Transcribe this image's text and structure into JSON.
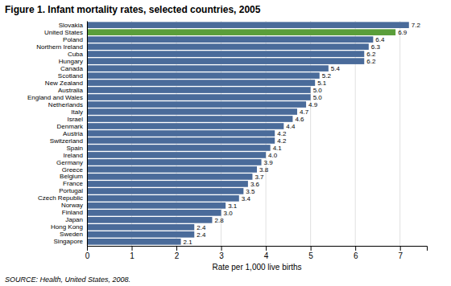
{
  "chart_data": {
    "type": "bar",
    "orientation": "horizontal",
    "title": "Figure 1. Infant mortality rates, selected countries, 2005",
    "x_label": "Rate per 1,000 live births",
    "annotations": [
      "SOURCE: Health, United States, 2008."
    ],
    "categories": [
      "Slovakia",
      "United States",
      "Poland",
      "Northern Ireland",
      "Cuba",
      "Hungary",
      "Canada",
      "Scotland",
      "New Zealand",
      "Australia",
      "England and Wales",
      "Netherlands",
      "Italy",
      "Israel",
      "Denmark",
      "Austria",
      "Switzerland",
      "Spain",
      "Ireland",
      "Germany",
      "Greece",
      "Belgium",
      "France",
      "Portugal",
      "Czech Republic",
      "Norway",
      "Finland",
      "Japan",
      "Hong Kong",
      "Sweden",
      "Singapore"
    ],
    "values": [
      7.2,
      6.9,
      6.4,
      6.3,
      6.2,
      6.2,
      5.4,
      5.2,
      5.1,
      5.0,
      5.0,
      4.9,
      4.7,
      4.6,
      4.4,
      4.2,
      4.2,
      4.1,
      4.0,
      3.9,
      3.8,
      3.7,
      3.6,
      3.5,
      3.4,
      3.1,
      3.0,
      2.8,
      2.4,
      2.4,
      2.1
    ],
    "value_labels": [
      "7.2",
      "6.9",
      "6.4",
      "6.3",
      "6.2",
      "6.2",
      "5.4",
      "5.2",
      "5.1",
      "5.0",
      "5.0",
      "4.9",
      "4.7",
      "4.6",
      "4.4",
      "4.2",
      "4.2",
      "4.1",
      "4.0",
      "3.9",
      "3.8",
      "3.7",
      "3.6",
      "3.5",
      "3.4",
      "3.1",
      "3.0",
      "2.8",
      "2.4",
      "2.4",
      "2.1"
    ],
    "data_labels": true,
    "colors": [
      "#4a6b9a",
      "#5a9e3a",
      "#4a6b9a",
      "#4a6b9a",
      "#4a6b9a",
      "#4a6b9a",
      "#4a6b9a",
      "#4a6b9a",
      "#4a6b9a",
      "#4a6b9a",
      "#4a6b9a",
      "#4a6b9a",
      "#4a6b9a",
      "#4a6b9a",
      "#4a6b9a",
      "#4a6b9a",
      "#4a6b9a",
      "#4a6b9a",
      "#4a6b9a",
      "#4a6b9a",
      "#4a6b9a",
      "#4a6b9a",
      "#4a6b9a",
      "#4a6b9a",
      "#4a6b9a",
      "#4a6b9a",
      "#4a6b9a",
      "#4a6b9a",
      "#4a6b9a",
      "#4a6b9a",
      "#4a6b9a"
    ],
    "xlim": [
      0,
      7.6
    ],
    "xticks": [
      0,
      1,
      2,
      3,
      4,
      5,
      6,
      7
    ],
    "grid": true
  }
}
